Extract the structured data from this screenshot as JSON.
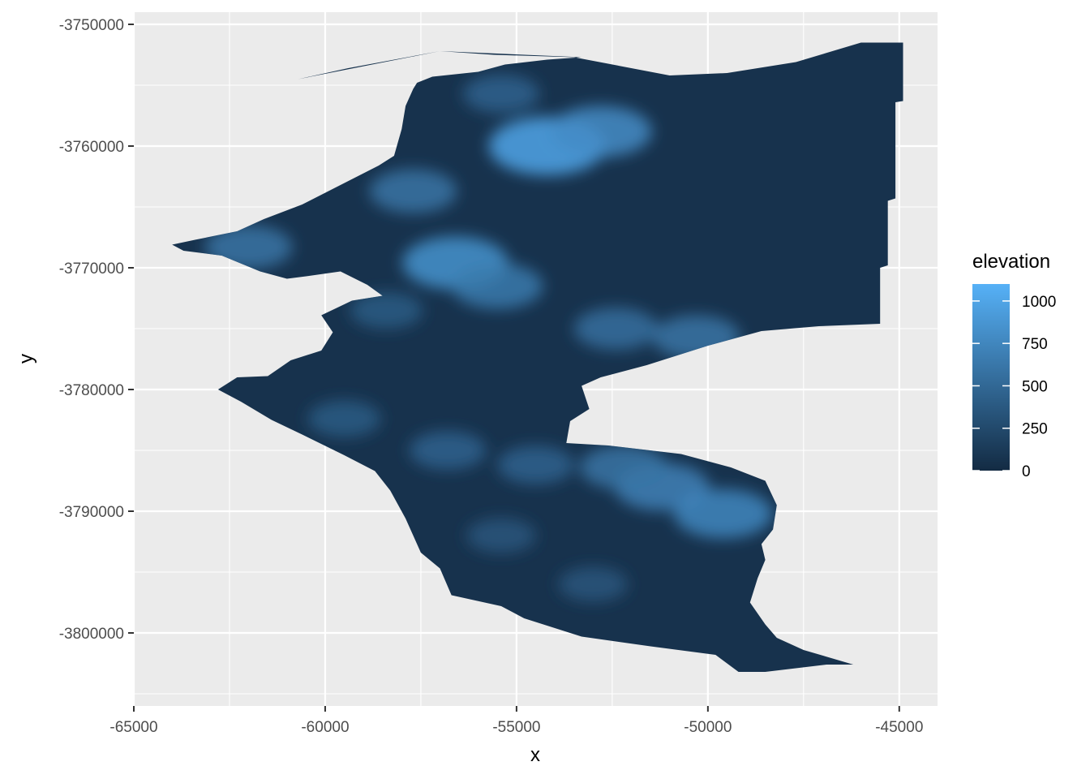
{
  "chart_data": {
    "type": "heatmap",
    "title": "",
    "xlabel": "x",
    "ylabel": "y",
    "xlim": [
      -65000,
      -44000
    ],
    "ylim": [
      -3806000,
      -3749000
    ],
    "x_ticks": [
      -65000,
      -60000,
      -55000,
      -50000,
      -45000
    ],
    "x_tick_labels": [
      "-65000",
      "-60000",
      "-55000",
      "-50000",
      "-45000"
    ],
    "y_ticks": [
      -3750000,
      -3760000,
      -3770000,
      -3780000,
      -3790000,
      -3800000
    ],
    "y_tick_labels": [
      "-3750000",
      "-3760000",
      "-3770000",
      "-3780000",
      "-3790000",
      "-3800000"
    ],
    "grid": true,
    "legend": {
      "title": "elevation",
      "position": "right",
      "range": [
        0,
        1100
      ],
      "breaks": [
        0,
        250,
        500,
        750,
        1000
      ],
      "labels": [
        "0",
        "250",
        "500",
        "750",
        "1000"
      ],
      "low_color": "#132B43",
      "high_color": "#56B1F7"
    },
    "outline": [
      [
        -60700,
        -3754500
      ],
      [
        -59400,
        -3753600
      ],
      [
        -57000,
        -3752200
      ],
      [
        -55600,
        -3752500
      ],
      [
        -53500,
        -3752700
      ],
      [
        -51000,
        -3754200
      ],
      [
        -49500,
        -3754000
      ],
      [
        -47700,
        -3753100
      ],
      [
        -46000,
        -3751500
      ],
      [
        -44900,
        -3751500
      ],
      [
        -44900,
        -3756300
      ],
      [
        -45100,
        -3756400
      ],
      [
        -45100,
        -3764300
      ],
      [
        -45300,
        -3764500
      ],
      [
        -45300,
        -3769800
      ],
      [
        -45500,
        -3770000
      ],
      [
        -45500,
        -3774600
      ],
      [
        -47100,
        -3774800
      ],
      [
        -48600,
        -3775200
      ],
      [
        -50000,
        -3776400
      ],
      [
        -51600,
        -3778000
      ],
      [
        -52800,
        -3779000
      ],
      [
        -53300,
        -3779700
      ],
      [
        -53100,
        -3781600
      ],
      [
        -53600,
        -3782600
      ],
      [
        -53700,
        -3784400
      ],
      [
        -52600,
        -3784600
      ],
      [
        -50700,
        -3785300
      ],
      [
        -49400,
        -3786400
      ],
      [
        -48500,
        -3787500
      ],
      [
        -48200,
        -3789500
      ],
      [
        -48300,
        -3791500
      ],
      [
        -48600,
        -3792700
      ],
      [
        -48500,
        -3794000
      ],
      [
        -48700,
        -3795500
      ],
      [
        -48900,
        -3797500
      ],
      [
        -48500,
        -3799300
      ],
      [
        -48200,
        -3800400
      ],
      [
        -47500,
        -3801400
      ],
      [
        -46200,
        -3802600
      ],
      [
        -46900,
        -3802600
      ],
      [
        -48500,
        -3803200
      ],
      [
        -49200,
        -3803200
      ],
      [
        -49800,
        -3801800
      ],
      [
        -51500,
        -3801100
      ],
      [
        -53300,
        -3800300
      ],
      [
        -54800,
        -3798800
      ],
      [
        -55400,
        -3797800
      ],
      [
        -56700,
        -3796900
      ],
      [
        -57000,
        -3794700
      ],
      [
        -57500,
        -3793400
      ],
      [
        -57900,
        -3790600
      ],
      [
        -58300,
        -3788300
      ],
      [
        -58700,
        -3786700
      ],
      [
        -59500,
        -3785400
      ],
      [
        -60600,
        -3783700
      ],
      [
        -61400,
        -3782500
      ],
      [
        -62200,
        -3781000
      ],
      [
        -62800,
        -3780000
      ],
      [
        -62300,
        -3779000
      ],
      [
        -61500,
        -3778900
      ],
      [
        -60900,
        -3777600
      ],
      [
        -60100,
        -3776800
      ],
      [
        -59800,
        -3775300
      ],
      [
        -60100,
        -3773900
      ],
      [
        -59300,
        -3772700
      ],
      [
        -58500,
        -3772300
      ],
      [
        -58900,
        -3771400
      ],
      [
        -59600,
        -3770300
      ],
      [
        -60500,
        -3770700
      ],
      [
        -61000,
        -3770900
      ],
      [
        -61700,
        -3770300
      ],
      [
        -62700,
        -3769000
      ],
      [
        -63700,
        -3768600
      ],
      [
        -64000,
        -3768100
      ],
      [
        -63400,
        -3767700
      ],
      [
        -62300,
        -3767000
      ],
      [
        -61600,
        -3766000
      ],
      [
        -60600,
        -3764800
      ],
      [
        -59600,
        -3763200
      ],
      [
        -58600,
        -3761600
      ],
      [
        -58200,
        -3760800
      ],
      [
        -58000,
        -3758600
      ],
      [
        -57900,
        -3756700
      ],
      [
        -57700,
        -3755300
      ],
      [
        -57600,
        -3754800
      ],
      [
        -57200,
        -3754300
      ],
      [
        -56000,
        -3753900
      ],
      [
        -55300,
        -3753300
      ],
      [
        -54200,
        -3752900
      ],
      [
        -53300,
        -3752700
      ],
      [
        -57000,
        -3752200
      ]
    ],
    "elevation_peaks": [
      {
        "x": -54200,
        "y": -3760000,
        "elevation": 1000
      },
      {
        "x": -52800,
        "y": -3758800,
        "elevation": 800
      },
      {
        "x": -56600,
        "y": -3769600,
        "elevation": 850
      },
      {
        "x": -55500,
        "y": -3771500,
        "elevation": 650
      },
      {
        "x": -62000,
        "y": -3768300,
        "elevation": 600
      },
      {
        "x": -57700,
        "y": -3763700,
        "elevation": 600
      },
      {
        "x": -55400,
        "y": -3755700,
        "elevation": 450
      },
      {
        "x": -52400,
        "y": -3775000,
        "elevation": 550
      },
      {
        "x": -50300,
        "y": -3775700,
        "elevation": 600
      },
      {
        "x": -51200,
        "y": -3788000,
        "elevation": 700
      },
      {
        "x": -49600,
        "y": -3790200,
        "elevation": 750
      },
      {
        "x": -52200,
        "y": -3786400,
        "elevation": 600
      },
      {
        "x": -56800,
        "y": -3785000,
        "elevation": 450
      },
      {
        "x": -54500,
        "y": -3786200,
        "elevation": 450
      },
      {
        "x": -59500,
        "y": -3782400,
        "elevation": 400
      },
      {
        "x": -55400,
        "y": -3792000,
        "elevation": 350
      },
      {
        "x": -53000,
        "y": -3796000,
        "elevation": 350
      },
      {
        "x": -58400,
        "y": -3773500,
        "elevation": 400
      }
    ]
  }
}
